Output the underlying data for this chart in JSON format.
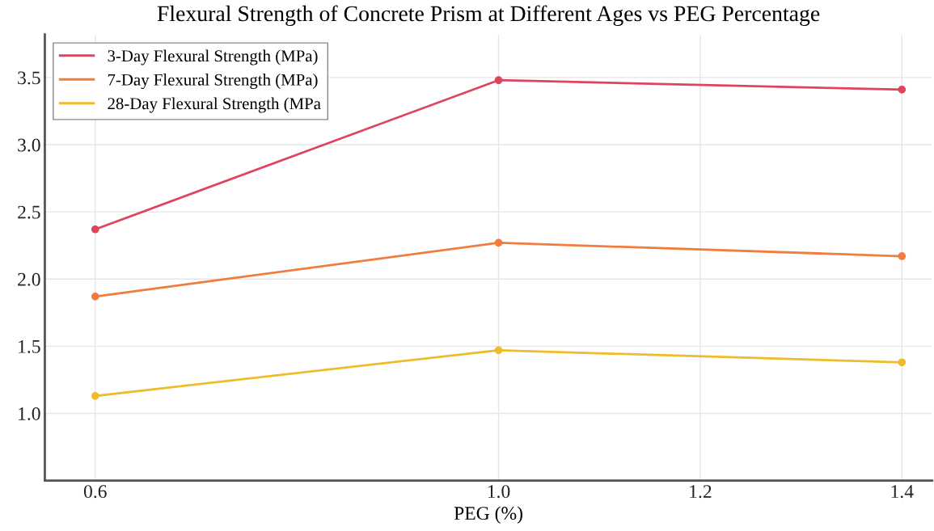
{
  "chart_data": {
    "type": "line",
    "title": "Flexural Strength of Concrete Prism at Different Ages vs PEG Percentage",
    "xlabel": "PEG (%)",
    "x": [
      0.6,
      1.0,
      1.4
    ],
    "series": [
      {
        "name": "3-Day Flexural Strength (MPa)",
        "color": "#e0435e",
        "values": [
          2.37,
          3.48,
          3.41
        ]
      },
      {
        "name": "7-Day Flexural Strength (MPa)",
        "color": "#f07d3c",
        "values": [
          1.87,
          2.27,
          2.17
        ]
      },
      {
        "name": "28-Day Flexural Strength (MPa",
        "color": "#efbb2a",
        "values": [
          1.13,
          1.47,
          1.38
        ]
      }
    ],
    "xlim": [
      0.55,
      1.43
    ],
    "xticks": [
      0.6,
      {
        "value": 1,
        "label": "1.0"
      },
      1.2,
      1.4
    ],
    "ylim": [
      0.5,
      3.82
    ],
    "yticks": [
      {
        "value": 1,
        "label": "1.0"
      },
      1.5,
      {
        "value": 2,
        "label": "2.0"
      },
      2.5,
      {
        "value": 3,
        "label": "3.0"
      },
      3.5
    ],
    "grid": true,
    "legend": "top left",
    "marker": "circle",
    "line_style": "solid"
  }
}
